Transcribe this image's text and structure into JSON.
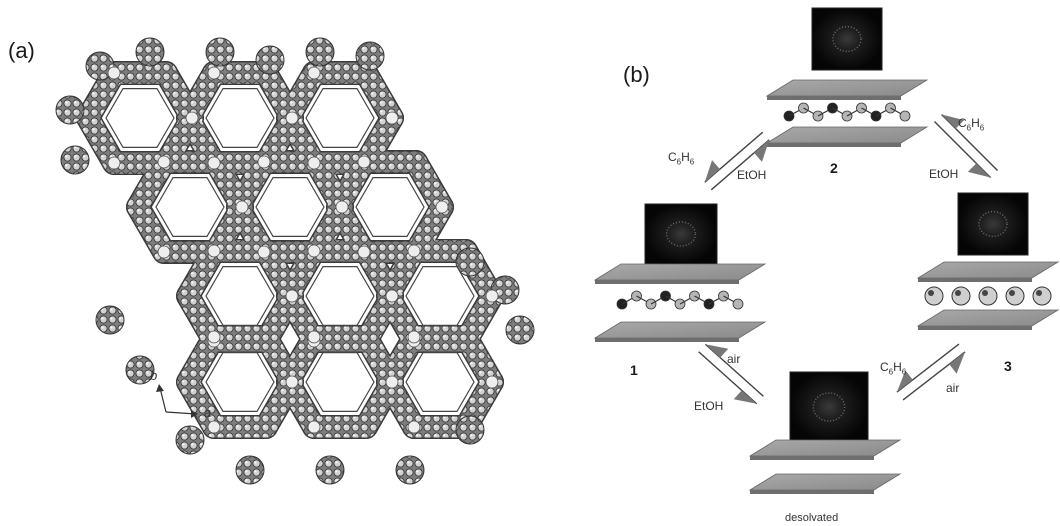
{
  "panel_a": {
    "label": "(a)",
    "axes": {
      "b": "b",
      "a": "a"
    }
  },
  "panel_b": {
    "label": "(b)",
    "states": [
      {
        "id": "s1",
        "label": "1"
      },
      {
        "id": "s2",
        "label": "2"
      },
      {
        "id": "s3",
        "label": "3"
      },
      {
        "id": "s4",
        "label": "desolvated"
      }
    ],
    "transitions": [
      {
        "id": "t12",
        "forward": {
          "main": "C",
          "sub": "6",
          "mid": "H",
          "sub2": "6"
        },
        "reverse": "EtOH"
      },
      {
        "id": "t23",
        "forward": {
          "main": "C",
          "sub": "6",
          "mid": "H",
          "sub2": "6"
        },
        "reverse": "EtOH"
      },
      {
        "id": "t14",
        "forward": "air",
        "reverse": "EtOH"
      },
      {
        "id": "t34",
        "forward": {
          "main": "C",
          "sub": "6",
          "mid": "H",
          "sub2": "6"
        },
        "reverse": "air"
      }
    ]
  }
}
